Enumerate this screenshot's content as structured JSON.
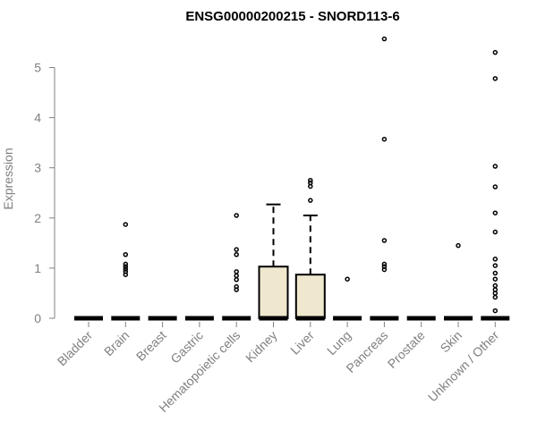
{
  "chart_data": {
    "type": "boxplot",
    "title": "ENSG00000200215 - SNORD113-6",
    "xlabel": "",
    "ylabel": "Expression",
    "ylim": [
      0,
      5.6
    ],
    "yticks": [
      "0",
      "1",
      "2",
      "3",
      "4",
      "5"
    ],
    "grid": false,
    "colors": {
      "box_fill": "#efe8cf",
      "box_stroke": "#000000",
      "axis": "#808080",
      "outlier": "#000000"
    },
    "categories": [
      "Bladder",
      "Brain",
      "Breast",
      "Gastric",
      "Hematopoietic cells",
      "Kidney",
      "Liver",
      "Lung",
      "Pancreas",
      "Prostate",
      "Skin",
      "Unknown / Other"
    ],
    "boxes": [
      {
        "category": "Bladder",
        "min": 0,
        "q1": 0,
        "median": 0,
        "q3": 0,
        "max": 0,
        "outliers": []
      },
      {
        "category": "Brain",
        "min": 0,
        "q1": 0,
        "median": 0,
        "q3": 0,
        "max": 0,
        "outliers": [
          0.87,
          0.93,
          0.98,
          1.03,
          1.08,
          1.27,
          1.87
        ]
      },
      {
        "category": "Breast",
        "min": 0,
        "q1": 0,
        "median": 0,
        "q3": 0,
        "max": 0,
        "outliers": []
      },
      {
        "category": "Gastric",
        "min": 0,
        "q1": 0,
        "median": 0,
        "q3": 0,
        "max": 0,
        "outliers": []
      },
      {
        "category": "Hematopoietic cells",
        "min": 0,
        "q1": 0,
        "median": 0,
        "q3": 0,
        "max": 0,
        "outliers": [
          0.57,
          0.63,
          0.77,
          0.85,
          0.93,
          1.27,
          1.37,
          2.05
        ]
      },
      {
        "category": "Kidney",
        "min": 0,
        "q1": 0,
        "median": 0,
        "q3": 1.03,
        "max": 2.27,
        "outliers": []
      },
      {
        "category": "Liver",
        "min": 0,
        "q1": 0,
        "median": 0,
        "q3": 0.87,
        "max": 2.05,
        "outliers": [
          2.35,
          2.63,
          2.7,
          2.75
        ]
      },
      {
        "category": "Lung",
        "min": 0,
        "q1": 0,
        "median": 0,
        "q3": 0,
        "max": 0,
        "outliers": [
          0.78
        ]
      },
      {
        "category": "Pancreas",
        "min": 0,
        "q1": 0,
        "median": 0,
        "q3": 0,
        "max": 0,
        "outliers": [
          0.97,
          1.03,
          1.08,
          1.55,
          3.57,
          5.57
        ]
      },
      {
        "category": "Prostate",
        "min": 0,
        "q1": 0,
        "median": 0,
        "q3": 0,
        "max": 0,
        "outliers": []
      },
      {
        "category": "Skin",
        "min": 0,
        "q1": 0,
        "median": 0,
        "q3": 0,
        "max": 0,
        "outliers": [
          1.45
        ]
      },
      {
        "category": "Unknown / Other",
        "min": 0,
        "q1": 0,
        "median": 0,
        "q3": 0,
        "max": 0,
        "outliers": [
          0.15,
          0.42,
          0.5,
          0.57,
          0.65,
          0.78,
          0.9,
          1.05,
          1.18,
          1.72,
          2.1,
          2.62,
          3.03,
          4.78,
          5.3
        ]
      }
    ]
  }
}
